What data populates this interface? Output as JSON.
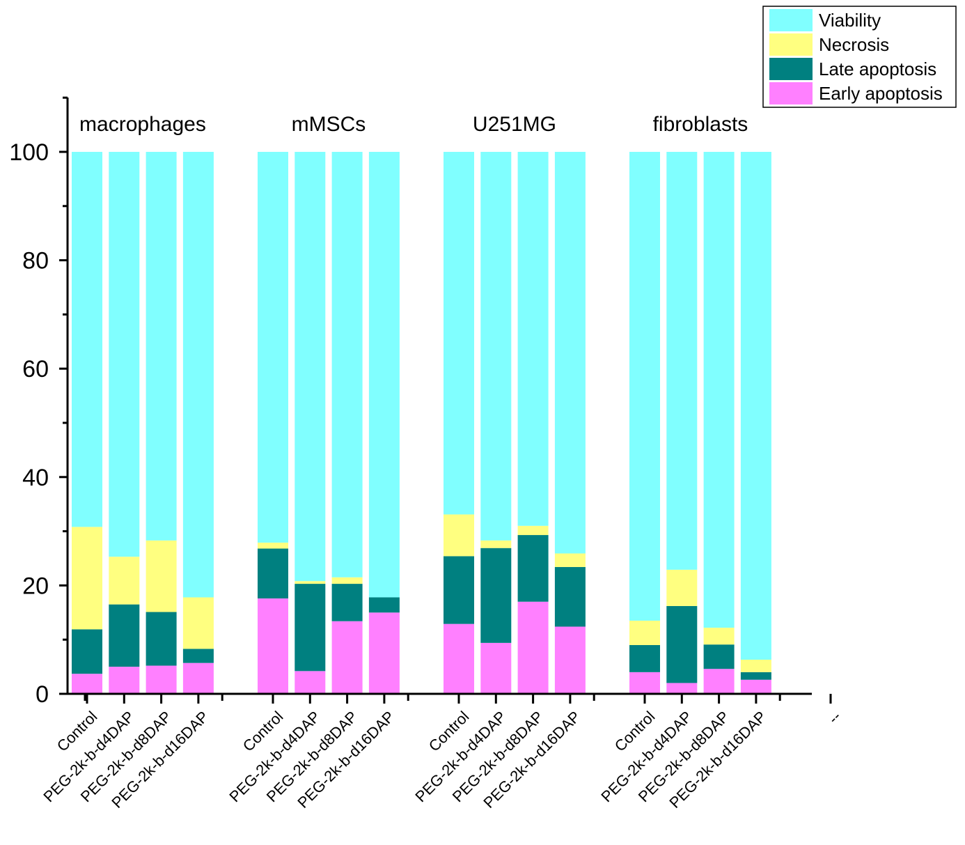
{
  "chart_data": {
    "type": "bar",
    "stacked": true,
    "title": "",
    "xlabel": "",
    "ylabel": "",
    "ylim": [
      0,
      110
    ],
    "yticks": [
      0,
      20,
      40,
      60,
      80,
      100
    ],
    "legend_position": "top-right",
    "groups": [
      {
        "name": "macrophages",
        "bars": [
          {
            "label": "Control",
            "early": 3.7,
            "late": 8.2,
            "necrosis": 18.9
          },
          {
            "label": "PEG-2k-b-d4DAP",
            "early": 5.0,
            "late": 11.5,
            "necrosis": 8.8
          },
          {
            "label": "PEG-2k-b-d8DAP",
            "early": 5.2,
            "late": 9.9,
            "necrosis": 13.2
          },
          {
            "label": "PEG-2k-b-d16DAP",
            "early": 5.7,
            "late": 2.6,
            "necrosis": 9.5
          }
        ]
      },
      {
        "name": "mMSCs",
        "bars": [
          {
            "label": "Control",
            "early": 17.6,
            "late": 9.2,
            "necrosis": 1.1
          },
          {
            "label": "PEG-2k-b-d4DAP",
            "early": 4.2,
            "late": 16.1,
            "necrosis": 0.5
          },
          {
            "label": "PEG-2k-b-d8DAP",
            "early": 13.4,
            "late": 6.9,
            "necrosis": 1.2
          },
          {
            "label": "PEG-2k-b-d16DAP",
            "early": 15.0,
            "late": 2.8,
            "necrosis": 0.0
          }
        ]
      },
      {
        "name": "U251MG",
        "bars": [
          {
            "label": "Control",
            "early": 12.9,
            "late": 12.5,
            "necrosis": 7.7
          },
          {
            "label": "PEG-2k-b-d4DAP",
            "early": 9.4,
            "late": 17.5,
            "necrosis": 1.4
          },
          {
            "label": "PEG-2k-b-d8DAP",
            "early": 17.0,
            "late": 12.3,
            "necrosis": 1.7
          },
          {
            "label": "PEG-2k-b-d16DAP",
            "early": 12.4,
            "late": 11.0,
            "necrosis": 2.5
          }
        ]
      },
      {
        "name": "fibroblasts",
        "bars": [
          {
            "label": "Control",
            "early": 4.0,
            "late": 5.0,
            "necrosis": 4.5
          },
          {
            "label": "PEG-2k-b-d4DAP",
            "early": 2.0,
            "late": 14.2,
            "necrosis": 6.7
          },
          {
            "label": "PEG-2k-b-d8DAP",
            "early": 4.6,
            "late": 4.5,
            "necrosis": 3.1
          },
          {
            "label": "PEG-2k-b-d16DAP",
            "early": 2.6,
            "late": 1.4,
            "necrosis": 2.3
          }
        ]
      }
    ],
    "trailing_tick_label": "--",
    "legend": [
      {
        "key": "viability",
        "label": "Viability",
        "color": "#80ffff"
      },
      {
        "key": "necrosis",
        "label": "Necrosis",
        "color": "#ffff80"
      },
      {
        "key": "late",
        "label": "Late apoptosis",
        "color": "#008080"
      },
      {
        "key": "early",
        "label": "Early apoptosis",
        "color": "#ff80ff"
      }
    ]
  }
}
